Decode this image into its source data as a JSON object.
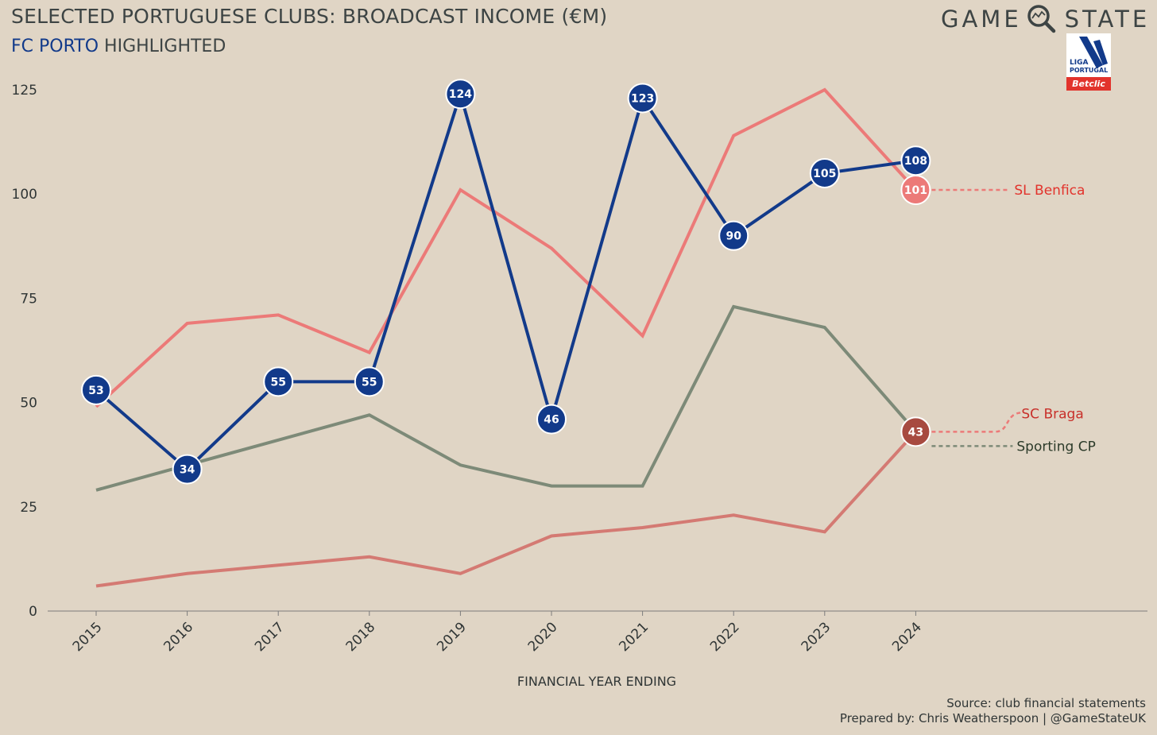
{
  "header": {
    "title": "SELECTED PORTUGUESE CLUBS: BROADCAST INCOME (€M)",
    "subtitle_highlight": "FC PORTO",
    "subtitle_rest": " HIGHLIGHTED",
    "brand_left": "GAME",
    "brand_right": "STATE",
    "logo_text_1": "LIGA",
    "logo_text_2": "PORTUGAL",
    "logo_text_3": "Betclic"
  },
  "footer": {
    "source": "Source: club financial statements",
    "credit": "Prepared by: Chris Weatherspoon | @GameStateUK"
  },
  "colors": {
    "background": "#e0d5c5",
    "porto": "#123a8a",
    "benfica": "#ec7a78",
    "braga": "#d47a73",
    "sporting": "#7d8a78",
    "braga_marker": "#a74a40",
    "benfica_label": "#e2332c",
    "braga_label": "#c8302a",
    "sporting_label": "#2c3b2a"
  },
  "chart_data": {
    "type": "line",
    "title": "SELECTED PORTUGUESE CLUBS: BROADCAST INCOME (€M)",
    "xlabel": "FINANCIAL YEAR ENDING",
    "ylabel": "",
    "x": [
      "2015",
      "2016",
      "2017",
      "2018",
      "2019",
      "2020",
      "2021",
      "2022",
      "2023",
      "2024"
    ],
    "ylim": [
      0,
      125
    ],
    "yticks": [
      "0",
      "25",
      "50",
      "75",
      "100",
      "125"
    ],
    "grid": false,
    "series": [
      {
        "name": "SL Benfica",
        "key": "benfica",
        "values": [
          49,
          69,
          71,
          62,
          101,
          87,
          66,
          114,
          125,
          101
        ],
        "end_label": "101"
      },
      {
        "name": "Sporting CP",
        "key": "sporting",
        "values": [
          29,
          35,
          41,
          47,
          35,
          30,
          30,
          73,
          68,
          43
        ]
      },
      {
        "name": "SC Braga",
        "key": "braga",
        "values": [
          6,
          9,
          11,
          13,
          9,
          18,
          20,
          23,
          19,
          43
        ],
        "end_label": "43"
      },
      {
        "name": "FC Porto",
        "key": "porto",
        "values": [
          53,
          34,
          55,
          55,
          124,
          46,
          123,
          90,
          105,
          108
        ],
        "point_labels": [
          "53",
          "34",
          "55",
          "55",
          "124",
          "46",
          "123",
          "90",
          "105",
          "108"
        ]
      }
    ]
  }
}
